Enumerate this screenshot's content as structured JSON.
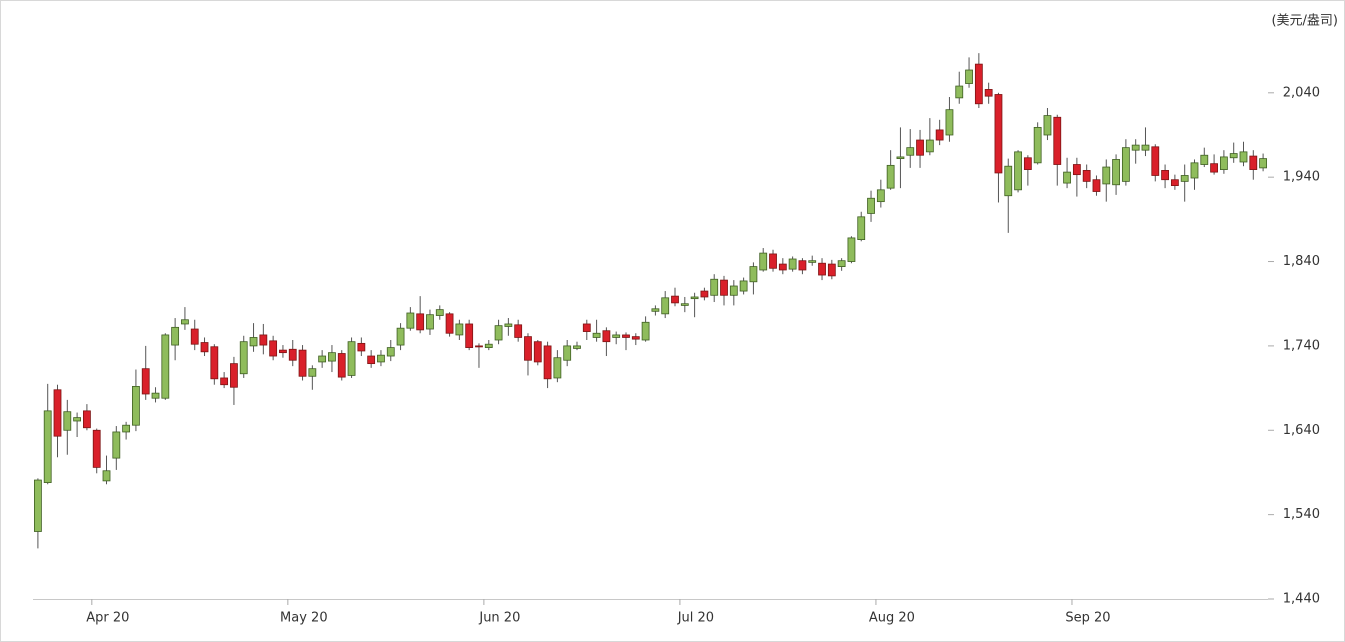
{
  "chart_data": {
    "type": "candlestick",
    "unit": "(美元/盎司)",
    "up_color": "#8fbc5c",
    "up_border": "#3f5f22",
    "down_color": "#d9202a",
    "down_border": "#7d1414",
    "wick_color": "#555555",
    "ylim": [
      1440,
      2150
    ],
    "yticks": [
      {
        "value": 1440,
        "label": "1,440"
      },
      {
        "value": 1540,
        "label": "1,540"
      },
      {
        "value": 1640,
        "label": "1,640"
      },
      {
        "value": 1740,
        "label": "1,740"
      },
      {
        "value": 1840,
        "label": "1,840"
      },
      {
        "value": 1940,
        "label": "1,940"
      },
      {
        "value": 2040,
        "label": "2,040"
      }
    ],
    "categories": [
      null,
      null,
      null,
      null,
      null,
      null,
      "Apr 20",
      null,
      null,
      null,
      null,
      null,
      null,
      null,
      null,
      null,
      null,
      null,
      null,
      null,
      null,
      null,
      null,
      null,
      null,
      null,
      "May 20",
      null,
      null,
      null,
      null,
      null,
      null,
      null,
      null,
      null,
      null,
      null,
      null,
      null,
      null,
      null,
      null,
      null,
      null,
      null,
      "Jun 20",
      null,
      null,
      null,
      null,
      null,
      null,
      null,
      null,
      null,
      null,
      null,
      null,
      null,
      null,
      null,
      null,
      null,
      null,
      null,
      "Jul 20",
      null,
      null,
      null,
      null,
      null,
      null,
      null,
      null,
      null,
      null,
      null,
      null,
      null,
      null,
      null,
      null,
      null,
      null,
      null,
      "Aug 20",
      null,
      null,
      null,
      null,
      null,
      null,
      null,
      null,
      null,
      null,
      null,
      null,
      null,
      null,
      null,
      null,
      null,
      null,
      null,
      "Sep 20",
      null,
      null,
      null,
      null,
      null,
      null,
      null,
      null,
      null,
      null,
      null,
      null,
      null,
      null,
      null,
      null,
      null,
      null,
      null
    ],
    "open": [
      1520,
      1578,
      1688,
      1640,
      1651,
      1663,
      1640,
      1580,
      1607,
      1638,
      1646,
      1713,
      1678,
      1678,
      1741,
      1766,
      1760,
      1744,
      1739,
      1702,
      1719,
      1707,
      1740,
      1753,
      1746,
      1735,
      1736,
      1735,
      1704,
      1721,
      1722,
      1731,
      1705,
      1743,
      1728,
      1721,
      1728,
      1741,
      1761,
      1778,
      1760,
      1776,
      1778,
      1753,
      1766,
      1740,
      1738,
      1747,
      1763,
      1765,
      1751,
      1745,
      1740,
      1702,
      1723,
      1737,
      1766,
      1750,
      1758,
      1750,
      1753,
      1751,
      1747,
      1781,
      1778,
      1799,
      1788,
      1796,
      1805,
      1800,
      1818,
      1800,
      1805,
      1816,
      1830,
      1849,
      1837,
      1831,
      1841,
      1839,
      1838,
      1837,
      1834,
      1840,
      1866,
      1897,
      1911,
      1927,
      1962,
      1966,
      1984,
      1970,
      1996,
      1990,
      2034,
      2051,
      2074,
      2044,
      2038,
      1918,
      1925,
      1963,
      1957,
      1990,
      2011,
      1933,
      1955,
      1948,
      1937,
      1932,
      1931,
      1935,
      1972,
      1972,
      1976,
      1948,
      1937,
      1935,
      1939,
      1955,
      1956,
      1949,
      1963,
      1958,
      1965,
      1951
    ],
    "high": [
      1583,
      1695,
      1694,
      1676,
      1661,
      1671,
      1642,
      1610,
      1645,
      1650,
      1712,
      1740,
      1691,
      1755,
      1773,
      1786,
      1771,
      1750,
      1742,
      1709,
      1727,
      1752,
      1767,
      1766,
      1752,
      1741,
      1747,
      1741,
      1717,
      1735,
      1741,
      1735,
      1750,
      1750,
      1735,
      1735,
      1747,
      1767,
      1786,
      1799,
      1783,
      1788,
      1780,
      1771,
      1771,
      1743,
      1747,
      1771,
      1773,
      1771,
      1755,
      1747,
      1745,
      1735,
      1747,
      1745,
      1771,
      1771,
      1762,
      1757,
      1756,
      1755,
      1775,
      1788,
      1805,
      1809,
      1798,
      1803,
      1809,
      1825,
      1823,
      1818,
      1821,
      1839,
      1856,
      1854,
      1844,
      1846,
      1844,
      1847,
      1844,
      1842,
      1844,
      1870,
      1899,
      1924,
      1937,
      1972,
      1999,
      1997,
      1996,
      2010,
      2008,
      2035,
      2065,
      2082,
      2087,
      2052,
      2040,
      1962,
      1972,
      1966,
      2005,
      2022,
      2014,
      1963,
      1963,
      1955,
      1942,
      1961,
      1967,
      1985,
      1985,
      1999,
      1979,
      1955,
      1943,
      1955,
      1961,
      1975,
      1967,
      1972,
      1981,
      1982,
      1972,
      1968
    ],
    "low": [
      1500,
      1576,
      1608,
      1611,
      1632,
      1640,
      1589,
      1576,
      1593,
      1629,
      1639,
      1676,
      1673,
      1676,
      1723,
      1759,
      1735,
      1728,
      1694,
      1690,
      1670,
      1702,
      1733,
      1730,
      1723,
      1726,
      1716,
      1699,
      1688,
      1714,
      1709,
      1699,
      1702,
      1728,
      1714,
      1716,
      1722,
      1735,
      1758,
      1755,
      1753,
      1771,
      1751,
      1747,
      1735,
      1714,
      1735,
      1742,
      1752,
      1745,
      1705,
      1717,
      1690,
      1697,
      1716,
      1735,
      1747,
      1745,
      1728,
      1742,
      1735,
      1741,
      1745,
      1776,
      1773,
      1787,
      1780,
      1774,
      1794,
      1792,
      1788,
      1788,
      1801,
      1801,
      1828,
      1828,
      1825,
      1828,
      1825,
      1835,
      1818,
      1819,
      1829,
      1838,
      1864,
      1887,
      1904,
      1925,
      1927,
      1951,
      1951,
      1966,
      1978,
      1982,
      2027,
      2046,
      2022,
      2027,
      1910,
      1874,
      1922,
      1930,
      1955,
      1984,
      1930,
      1927,
      1917,
      1927,
      1918,
      1911,
      1919,
      1930,
      1956,
      1965,
      1935,
      1927,
      1925,
      1911,
      1925,
      1952,
      1943,
      1944,
      1957,
      1953,
      1937,
      1947
    ],
    "close": [
      1581,
      1663,
      1633,
      1662,
      1655,
      1643,
      1596,
      1592,
      1638,
      1646,
      1692,
      1683,
      1684,
      1753,
      1762,
      1771,
      1742,
      1733,
      1701,
      1694,
      1691,
      1745,
      1750,
      1741,
      1728,
      1732,
      1723,
      1704,
      1713,
      1728,
      1732,
      1703,
      1745,
      1734,
      1719,
      1729,
      1738,
      1761,
      1779,
      1759,
      1777,
      1783,
      1755,
      1766,
      1738,
      1739,
      1742,
      1764,
      1766,
      1750,
      1723,
      1721,
      1701,
      1726,
      1740,
      1740,
      1757,
      1755,
      1745,
      1753,
      1750,
      1748,
      1768,
      1784,
      1797,
      1791,
      1790,
      1798,
      1798,
      1819,
      1800,
      1811,
      1817,
      1834,
      1850,
      1832,
      1830,
      1843,
      1830,
      1841,
      1824,
      1823,
      1841,
      1868,
      1893,
      1915,
      1925,
      1954,
      1964,
      1975,
      1966,
      1984,
      1984,
      2020,
      2048,
      2067,
      2027,
      2036,
      1945,
      1953,
      1970,
      1949,
      1999,
      2013,
      1955,
      1946,
      1943,
      1935,
      1923,
      1952,
      1961,
      1975,
      1978,
      1978,
      1942,
      1937,
      1930,
      1942,
      1957,
      1966,
      1946,
      1964,
      1968,
      1970,
      1949,
      1962
    ]
  }
}
